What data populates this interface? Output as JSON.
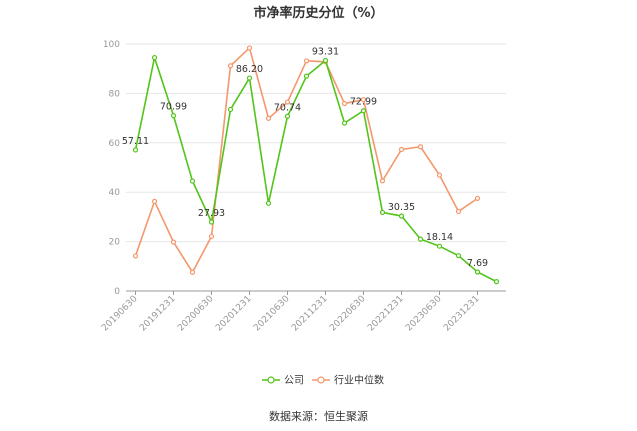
{
  "chart_data": {
    "type": "line",
    "title": "市净率历史分位（%）",
    "source": "数据来源：恒生聚源",
    "ylim": [
      0,
      100
    ],
    "yticks": [
      "0",
      "20",
      "40",
      "60",
      "80",
      "100"
    ],
    "xtick_labels": [
      "20190630",
      "20191231",
      "20200630",
      "20201231",
      "20210630",
      "20211231",
      "20220630",
      "20221231",
      "20230630",
      "20231231"
    ],
    "x": [
      "20190630",
      "20190930",
      "20191231",
      "20200331",
      "20200630",
      "20200930",
      "20201231",
      "20210331",
      "20210630",
      "20210930",
      "20211231",
      "20220331",
      "20220630",
      "20220930",
      "20221231",
      "20230331",
      "20230630",
      "20230930",
      "20231231",
      "20240331"
    ],
    "grid": true,
    "legend_position": "bottom",
    "series": [
      {
        "name": "公司",
        "color": "#52c41a",
        "values": [
          57.11,
          94.5,
          70.99,
          44.5,
          27.93,
          73.5,
          86.2,
          35.5,
          70.74,
          87,
          93.31,
          68,
          72.99,
          31.8,
          30.35,
          21,
          18.14,
          14.3,
          7.69,
          3.8
        ],
        "labels": [
          "57.11",
          "",
          "70.99",
          "",
          "27.93",
          "",
          "86.20",
          "",
          "70.74",
          "",
          "93.31",
          "",
          "72.99",
          "",
          "30.35",
          "",
          "18.14",
          "",
          "7.69",
          ""
        ]
      },
      {
        "name": "行业中位数",
        "color": "#f4976c",
        "values": [
          14.2,
          36.3,
          19.8,
          7.6,
          22.1,
          91.2,
          98.4,
          69.9,
          76.5,
          93.2,
          92.8,
          75.9,
          77.5,
          44.6,
          57.3,
          58.4,
          46.9,
          32.2,
          37.5,
          null
        ]
      }
    ]
  }
}
